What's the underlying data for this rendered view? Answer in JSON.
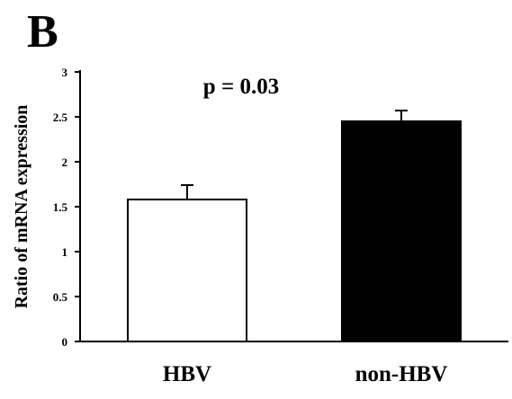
{
  "panel_label": "B",
  "chart_data": {
    "type": "bar",
    "categories": [
      "HBV",
      "non-HBV"
    ],
    "values": [
      1.58,
      2.45
    ],
    "errors": [
      0.16,
      0.12
    ],
    "colors": [
      "#ffffff",
      "#000000"
    ],
    "title": "",
    "xlabel": "",
    "ylabel": "Ratio of mRNA expression",
    "ylim": [
      0,
      3
    ],
    "yticks": [
      0,
      0.5,
      1,
      1.5,
      2,
      2.5,
      3
    ],
    "ytick_labels": [
      "0",
      "0.5",
      "1",
      "1.5",
      "2",
      "2.5",
      "3"
    ],
    "annotation": "p = 0.03",
    "grid": false,
    "legend": "none"
  }
}
